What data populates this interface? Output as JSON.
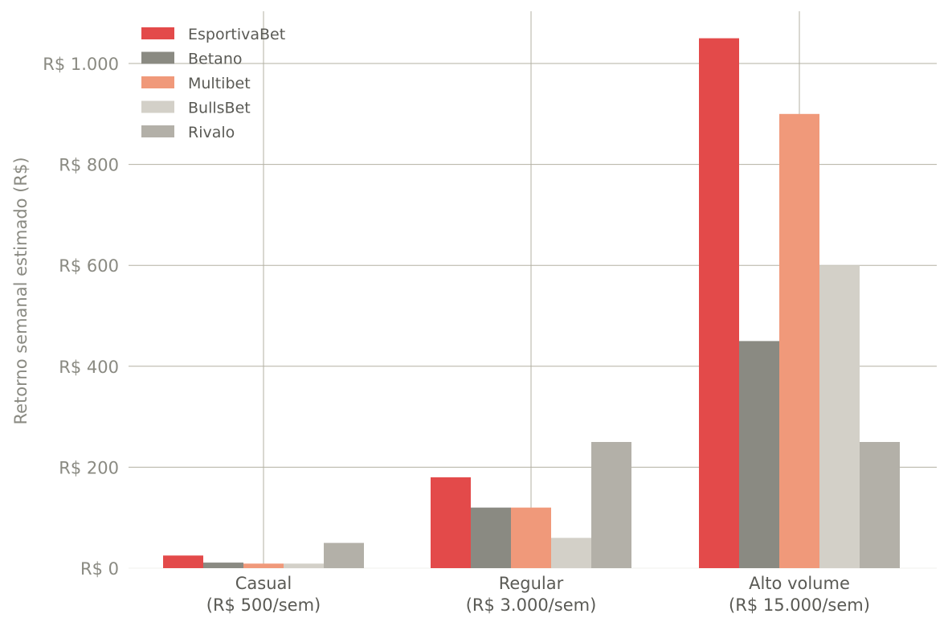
{
  "chart_data": {
    "type": "bar",
    "title": "",
    "xlabel": "",
    "ylabel": "Retorno semanal estimado (R$)",
    "ylim": [
      0,
      1100
    ],
    "yticks": [
      0,
      200,
      400,
      600,
      800,
      1000
    ],
    "ytick_labels": [
      "R$ 0",
      "R$ 200",
      "R$ 400",
      "R$ 600",
      "R$ 800",
      "R$ 1.000"
    ],
    "categories": [
      [
        "Casual",
        "(R$ 500/sem)"
      ],
      [
        "Regular",
        "(R$ 3.000/sem)"
      ],
      [
        "Alto volume",
        "(R$ 15.000/sem)"
      ]
    ],
    "grid": true,
    "legend_position": "top-left",
    "series": [
      {
        "name": "EsportivaBet",
        "color": "#e34a4a",
        "values": [
          25,
          180,
          1050
        ]
      },
      {
        "name": "Betano",
        "color": "#8a8a82",
        "values": [
          11,
          120,
          450
        ]
      },
      {
        "name": "Multibet",
        "color": "#f0997a",
        "values": [
          9,
          120,
          900
        ]
      },
      {
        "name": "BullsBet",
        "color": "#d3d0c8",
        "values": [
          9,
          60,
          600
        ]
      },
      {
        "name": "Rivalo",
        "color": "#b3b0a8",
        "values": [
          50,
          250,
          250
        ]
      }
    ]
  }
}
